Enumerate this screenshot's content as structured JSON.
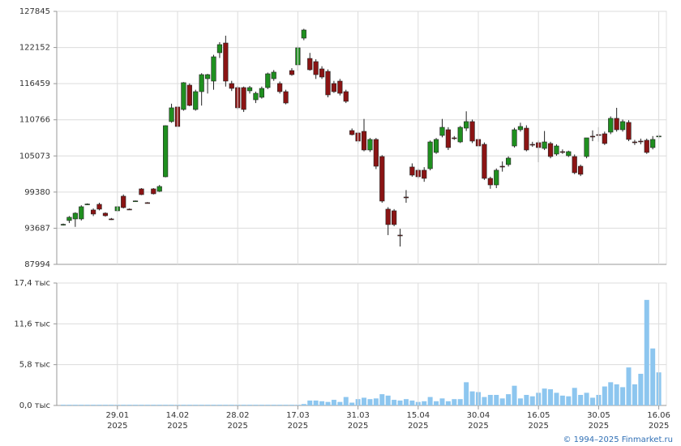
{
  "chart_data": [
    {
      "type": "candlestick",
      "open": [
        94260,
        94900,
        95150,
        95150,
        97450,
        96560,
        97450,
        96050,
        95150,
        96430,
        98730,
        96690,
        97960,
        99880,
        97710,
        99880,
        99500,
        101790,
        110480,
        112780,
        112390,
        116220,
        112390,
        115200,
        117240,
        116860,
        121330,
        122860,
        116480,
        115840,
        115840,
        115330,
        113920,
        114310,
        115840,
        117240,
        116480,
        115200,
        118520,
        119420,
        123630,
        120430,
        119930,
        118780,
        118390,
        116480,
        116860,
        115200,
        109070,
        108690,
        108940,
        106010,
        107670,
        104980,
        96690,
        96430,
        92600,
        98600,
        103330,
        102820,
        102820,
        103070,
        105620,
        108300,
        109200,
        107920,
        107280,
        109450,
        110480,
        107670,
        106900,
        101540,
        100510,
        103450,
        103710,
        106640,
        109200,
        109450,
        106900,
        107160,
        106260,
        107030,
        105370,
        105750,
        105110,
        104980,
        103450,
        104980,
        108180,
        108430,
        108560,
        108820,
        110990,
        109200,
        110350,
        107280,
        107410,
        107540,
        106390,
        108180
      ],
      "high": [
        94420,
        95600,
        96200,
        97300,
        97600,
        96800,
        97700,
        96200,
        95300,
        97200,
        99000,
        96800,
        98050,
        100000,
        97800,
        100000,
        100500,
        109900,
        113300,
        113400,
        116700,
        116500,
        115500,
        118100,
        118000,
        121000,
        123000,
        124010,
        116900,
        116100,
        116000,
        116100,
        115200,
        116000,
        118200,
        118600,
        116800,
        115500,
        118900,
        122400,
        125100,
        121300,
        120300,
        119200,
        118700,
        116900,
        117200,
        115500,
        109400,
        108900,
        110900,
        107900,
        107900,
        105200,
        97000,
        96700,
        93600,
        99700,
        103900,
        103100,
        103300,
        107500,
        107900,
        110900,
        109600,
        108200,
        109800,
        112100,
        110800,
        108000,
        107200,
        101800,
        103100,
        104200,
        105000,
        109500,
        110300,
        109900,
        107300,
        107500,
        109000,
        107300,
        106900,
        106100,
        105900,
        105300,
        103700,
        107900,
        109100,
        109600,
        108900,
        111300,
        112650,
        110800,
        110700,
        107600,
        107800,
        107800,
        108200,
        108500
      ],
      "low": [
        94100,
        94500,
        93900,
        94900,
        97350,
        95600,
        96500,
        95500,
        95000,
        96300,
        96800,
        96600,
        97900,
        98900,
        97650,
        99000,
        99400,
        101700,
        110300,
        109600,
        112200,
        112900,
        112200,
        113000,
        114900,
        115500,
        120500,
        116000,
        115300,
        112400,
        112000,
        114900,
        113400,
        114100,
        115600,
        116900,
        114900,
        113200,
        117700,
        118500,
        123300,
        118500,
        117200,
        117200,
        114300,
        115000,
        114600,
        113400,
        108300,
        107000,
        105800,
        105700,
        103000,
        97700,
        92600,
        94000,
        90810,
        97700,
        101800,
        101500,
        101000,
        102800,
        105400,
        108000,
        106000,
        107600,
        107100,
        109000,
        107100,
        106400,
        101300,
        99900,
        100000,
        102600,
        103400,
        106400,
        108900,
        105800,
        106500,
        104100,
        106000,
        104700,
        105100,
        105400,
        104900,
        102200,
        101900,
        104700,
        107400,
        107300,
        106800,
        108500,
        108900,
        108900,
        107400,
        106800,
        106900,
        105400,
        106100,
        107800
      ],
      "close": [
        94300,
        95410,
        96050,
        97070,
        97500,
        95920,
        96690,
        95660,
        95100,
        97070,
        96940,
        96650,
        97990,
        98980,
        97700,
        99110,
        100260,
        109840,
        112650,
        109710,
        116610,
        113030,
        115200,
        117880,
        117880,
        120690,
        122610,
        116860,
        115710,
        112650,
        112390,
        115840,
        114940,
        115710,
        118010,
        118270,
        115200,
        113410,
        117880,
        122100,
        124910,
        118650,
        117880,
        117500,
        114690,
        115200,
        114940,
        113670,
        108430,
        107410,
        106010,
        107670,
        103450,
        97960,
        94260,
        94260,
        92500,
        98500,
        102050,
        101790,
        101540,
        107280,
        107670,
        109580,
        106390,
        107900,
        109580,
        110480,
        107410,
        106640,
        101540,
        100510,
        102820,
        103400,
        104730,
        109200,
        109710,
        106010,
        106850,
        106390,
        107280,
        104980,
        106640,
        105700,
        105750,
        102430,
        102180,
        107920,
        108150,
        108400,
        107030,
        110990,
        109200,
        110480,
        107670,
        107250,
        107380,
        105620,
        107670,
        108200
      ],
      "up_color": "#1f8f1f",
      "down_color": "#8b1414",
      "ylim": [
        87994,
        127845
      ],
      "yticks": [
        87994,
        93687,
        99380,
        105073,
        110766,
        116459,
        122152,
        127845
      ],
      "grid": true
    },
    {
      "type": "bar",
      "categories": [
        null,
        null,
        null,
        null,
        null,
        null,
        null,
        null,
        null,
        {
          "day": "29.01",
          "year": "2025"
        },
        null,
        null,
        null,
        null,
        null,
        null,
        null,
        null,
        null,
        {
          "day": "14.02",
          "year": "2025"
        },
        null,
        null,
        null,
        null,
        null,
        null,
        null,
        null,
        null,
        {
          "day": "28.02",
          "year": "2025"
        },
        null,
        null,
        null,
        null,
        null,
        null,
        null,
        null,
        null,
        {
          "day": "17.03",
          "year": "2025"
        },
        null,
        null,
        null,
        null,
        null,
        null,
        null,
        null,
        null,
        {
          "day": "31.03",
          "year": "2025"
        },
        null,
        null,
        null,
        null,
        null,
        null,
        null,
        null,
        null,
        {
          "day": "15.04",
          "year": "2025"
        },
        null,
        null,
        null,
        null,
        null,
        null,
        null,
        null,
        null,
        {
          "day": "30.04",
          "year": "2025"
        },
        null,
        null,
        null,
        null,
        null,
        null,
        null,
        null,
        null,
        {
          "day": "16.05",
          "year": "2025"
        },
        null,
        null,
        null,
        null,
        null,
        null,
        null,
        null,
        null,
        {
          "day": "30.05",
          "year": "2025"
        },
        null,
        null,
        null,
        null,
        null,
        null,
        null,
        null,
        null,
        {
          "day": "16.06",
          "year": "2025"
        }
      ],
      "values": [
        0.1,
        0.1,
        0.1,
        0.1,
        0.1,
        0.1,
        0.1,
        0.1,
        0.1,
        0.1,
        0.1,
        0.1,
        0.1,
        0.1,
        0.1,
        0.1,
        0.1,
        0.1,
        0.1,
        0.1,
        0.1,
        0.1,
        0.1,
        0.1,
        0.1,
        0.1,
        0.1,
        0.1,
        0.1,
        0.1,
        0.1,
        0.1,
        0.1,
        0.1,
        0.1,
        0.1,
        0.1,
        0.1,
        0.1,
        0.1,
        0.2,
        0.7,
        0.7,
        0.6,
        0.5,
        0.8,
        0.5,
        1.2,
        0.4,
        0.9,
        1.1,
        0.9,
        1.0,
        1.6,
        1.4,
        0.8,
        0.7,
        0.9,
        0.7,
        0.5,
        0.6,
        1.2,
        0.6,
        1.0,
        0.6,
        0.9,
        0.9,
        3.3,
        2.0,
        1.9,
        1.2,
        1.5,
        1.5,
        1.0,
        1.6,
        2.8,
        1.0,
        1.5,
        1.3,
        1.8,
        2.4,
        2.3,
        1.8,
        1.4,
        1.3,
        2.5,
        1.5,
        1.8,
        1.1,
        1.5,
        2.7,
        3.3,
        3.0,
        2.6,
        5.4,
        3.0,
        4.5,
        15.0,
        8.1,
        4.7
      ],
      "color": "#8dc6ef",
      "ylim": [
        0,
        17.4
      ],
      "yticks": [
        {
          "value": 0,
          "label": "0,0 тыс"
        },
        {
          "value": 5.8,
          "label": "5,8 тыс"
        },
        {
          "value": 11.6,
          "label": "11,6 тыс"
        },
        {
          "value": 17.4,
          "label": "17,4 тыс"
        }
      ],
      "grid": true
    }
  ],
  "credit": "© 1994–2025 Finmarket.ru"
}
